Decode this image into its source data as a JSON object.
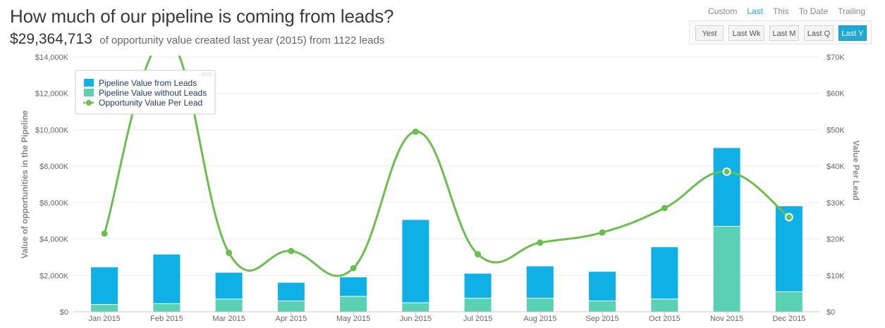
{
  "header": {
    "title": "How much of our pipeline is coming from leads?",
    "amount": "$29,364,713",
    "description": "of opportunity value created last year (2015) from 1122 leads"
  },
  "range_tabs": [
    {
      "label": "Custom",
      "active": false
    },
    {
      "label": "Last",
      "active": true
    },
    {
      "label": "This",
      "active": false
    },
    {
      "label": "To Date",
      "active": false
    },
    {
      "label": "Trailing",
      "active": false
    }
  ],
  "period_buttons": [
    {
      "label": "Yest",
      "active": false
    },
    {
      "label": "Last Wk",
      "active": false
    },
    {
      "label": "Last M",
      "active": false
    },
    {
      "label": "Last Q",
      "active": false
    },
    {
      "label": "Last Y",
      "active": true
    }
  ],
  "chart_data": {
    "type": "bar",
    "stacked": true,
    "categories": [
      "Jan 2015",
      "Feb 2015",
      "Mar 2015",
      "Apr 2015",
      "May 2015",
      "Jun 2015",
      "Jul 2015",
      "Aug 2015",
      "Sep 2015",
      "Oct 2015",
      "Nov 2015",
      "Dec 2015"
    ],
    "series": [
      {
        "name": "Pipeline Value from Leads",
        "axis": "left",
        "color": "#0fb0e6",
        "values": [
          2050,
          2700,
          1450,
          1000,
          1050,
          4550,
          1350,
          1750,
          1600,
          2850,
          4300,
          4700
        ]
      },
      {
        "name": "Pipeline Value without Leads",
        "axis": "left",
        "color": "#5ad1b2",
        "values": [
          400,
          450,
          700,
          600,
          850,
          500,
          750,
          750,
          600,
          700,
          4700,
          1100
        ]
      },
      {
        "name": "Opportunity Value Per Lead",
        "type": "line",
        "axis": "right",
        "color": "#6bbf4e",
        "values": [
          21500,
          75000,
          16200,
          16700,
          12000,
          49500,
          15800,
          19000,
          21800,
          28500,
          38500,
          26000
        ]
      }
    ],
    "ylabel": "Value of opportunities in the Pipeline",
    "ylabel_right": "Value Per Lead",
    "ylim": [
      0,
      14000
    ],
    "ylim_right": [
      0,
      70000
    ],
    "yticks": [
      "$0",
      "$2,000K",
      "$4,000K",
      "$6,000K",
      "$8,000K",
      "$10,000K",
      "$12,000K",
      "$14,000K"
    ],
    "yticks_right": [
      "$0",
      "$10K",
      "$20K",
      "$30K",
      "$40K",
      "$50K",
      "$60K",
      "$70K"
    ],
    "grid": true,
    "legend": "top-left"
  }
}
